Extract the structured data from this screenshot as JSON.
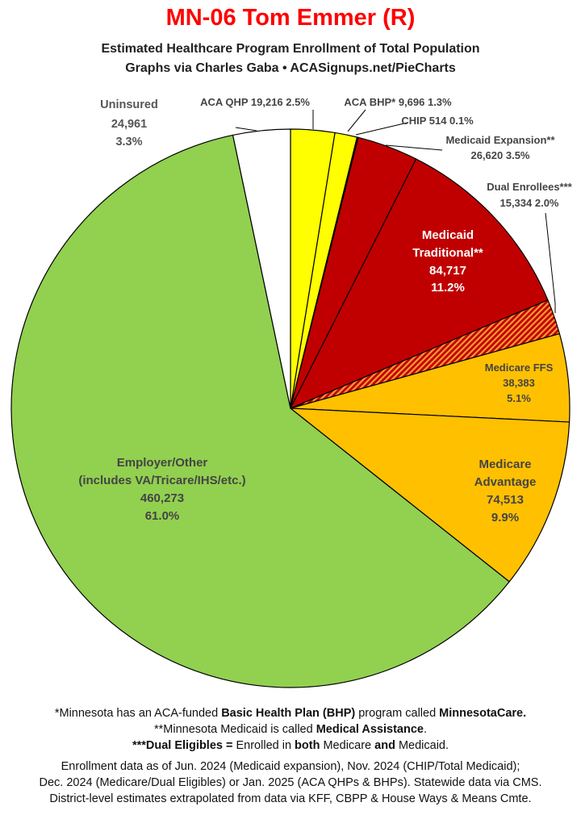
{
  "header": {
    "title": "MN-06 Tom Emmer (R)",
    "subtitle1": "Estimated Healthcare Program Enrollment of Total Population",
    "subtitle2": "Graphs via Charles Gaba  •  ACASignups.net/PieCharts"
  },
  "chart_data": {
    "type": "pie",
    "title": "MN-06 Tom Emmer (R)",
    "start": "12 o'clock",
    "direction": "clockwise",
    "slices": [
      {
        "label": "ACA QHP",
        "value": 19216,
        "percent": "2.5%",
        "value_text": "19,216",
        "color": "#ffff00"
      },
      {
        "label": "ACA BHP*",
        "value": 9696,
        "percent": "1.3%",
        "value_text": "9,696",
        "color": "#ffff00"
      },
      {
        "label": "CHIP",
        "value": 514,
        "percent": "0.1%",
        "value_text": "514",
        "color": "#c00000"
      },
      {
        "label": "Medicaid Expansion**",
        "value": 26620,
        "percent": "3.5%",
        "value_text": "26,620",
        "color": "#c00000"
      },
      {
        "label": "Medicaid Traditional**",
        "value": 84717,
        "percent": "11.2%",
        "value_text": "84,717",
        "color": "#c00000"
      },
      {
        "label": "Dual Enrollees***",
        "value": 15334,
        "percent": "2.0%",
        "value_text": "15,334",
        "color": "#c00000",
        "pattern": "hatched-orange"
      },
      {
        "label": "Medicare FFS",
        "value": 38383,
        "percent": "5.1%",
        "value_text": "38,383",
        "color": "#ffc000"
      },
      {
        "label": "Medicare Advantage",
        "value": 74513,
        "percent": "9.9%",
        "value_text": "74,513",
        "color": "#ffc000"
      },
      {
        "label": "Employer/Other (includes VA/Tricare/IHS/etc.)",
        "value": 460273,
        "percent": "61.0%",
        "value_text": "460,273",
        "color": "#92d050"
      },
      {
        "label": "Uninsured",
        "value": 24961,
        "percent": "3.3%",
        "value_text": "24,961",
        "color": "#ffffff"
      }
    ]
  },
  "labels": {
    "aca_qhp": "ACA QHP 19,216 2.5%",
    "aca_bhp": "ACA BHP* 9,696 1.3%",
    "chip": "CHIP 514 0.1%",
    "medicaid_exp_1": "Medicaid Expansion**",
    "medicaid_exp_2": "26,620 3.5%",
    "dual_1": "Dual Enrollees***",
    "dual_2": "15,334 2.0%",
    "medicaid_trad_1": "Medicaid",
    "medicaid_trad_2": "Traditional**",
    "medicaid_trad_3": "84,717",
    "medicaid_trad_4": "11.2%",
    "medicare_ffs_1": "Medicare FFS",
    "medicare_ffs_2": "38,383",
    "medicare_ffs_3": "5.1%",
    "medicare_adv_1": "Medicare",
    "medicare_adv_2": "Advantage",
    "medicare_adv_3": "74,513",
    "medicare_adv_4": "9.9%",
    "employer_1": "Employer/Other",
    "employer_2": "(includes VA/Tricare/IHS/etc.)",
    "employer_3": "460,273",
    "employer_4": "61.0%",
    "uninsured_1": "Uninsured",
    "uninsured_2": "24,961",
    "uninsured_3": "3.3%"
  },
  "footnotes": {
    "n1_a": "*Minnesota has an ACA-funded ",
    "n1_b": "Basic Health Plan (BHP)",
    "n1_c": " program called ",
    "n1_d": "MinnesotaCare.",
    "n2_a": "**Minnesota Medicaid is called ",
    "n2_b": "Medical Assistance",
    "n2_c": ".",
    "n3_a": "***Dual Eligibles =",
    "n3_b": " Enrolled in ",
    "n3_c": "both",
    "n3_d": " Medicare ",
    "n3_e": "and",
    "n3_f": " Medicaid.",
    "s1": "Enrollment data as of Jun. 2024 (Medicaid expansion), Nov. 2024 (CHIP/Total Medicaid);",
    "s2": "Dec. 2024 (Medicare/Dual Eligibles) or Jan. 2025 (ACA QHPs & BHPs). Statewide data via CMS.",
    "s3": "District-level estimates extrapolated from data via KFF, CBPP & House Ways & Means Cmte."
  }
}
